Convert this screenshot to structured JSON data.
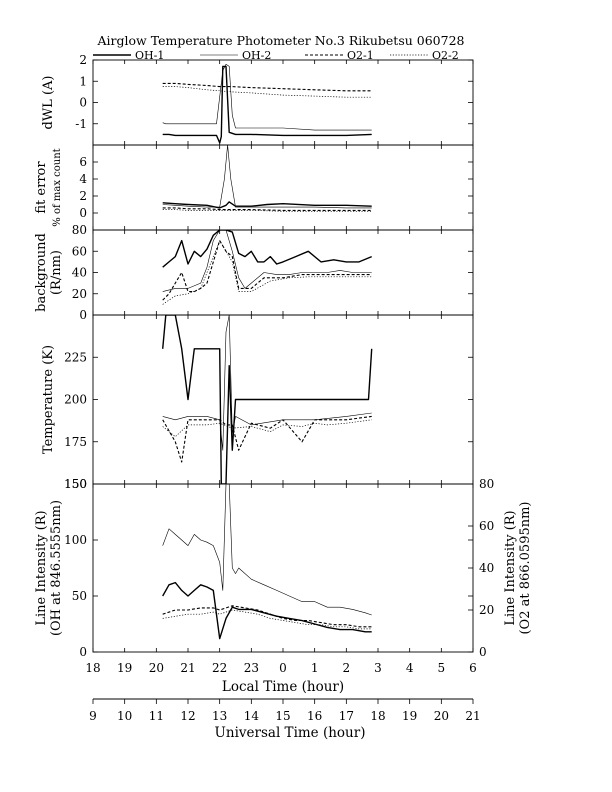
{
  "chart_data": {
    "type": "line",
    "title": "Airglow Temperature Photometer No.3  Rikubetsu  060728",
    "legend": {
      "placement": "top",
      "entries": [
        {
          "name": "OH-1",
          "style": "solid-thick"
        },
        {
          "name": "OH-2",
          "style": "solid-thin"
        },
        {
          "name": "O2-1",
          "style": "dashed-thick"
        },
        {
          "name": "O2-2",
          "style": "dotted-thin"
        }
      ]
    },
    "x_axes": {
      "local_time": {
        "label": "Local Time (hour)",
        "ticks": [
          "18",
          "19",
          "20",
          "21",
          "22",
          "23",
          "0",
          "1",
          "2",
          "3",
          "4",
          "5",
          "6"
        ]
      },
      "universal_time": {
        "label": "Universal Time (hour)",
        "ticks": [
          "9",
          "10",
          "11",
          "12",
          "13",
          "14",
          "15",
          "16",
          "17",
          "18",
          "19",
          "20",
          "21"
        ]
      },
      "range_ut": [
        9,
        21
      ]
    },
    "panels": [
      {
        "id": "dwl",
        "ylabel": [
          "dWL (A)"
        ],
        "ylim": [
          -2,
          2
        ],
        "yticks": [
          2,
          1,
          0,
          -1
        ],
        "series": [
          {
            "name": "OH-1",
            "x": [
              11.2,
              11.4,
              11.6,
              12.0,
              12.6,
              12.9,
              13.0,
              13.05,
              13.1,
              13.2,
              13.3,
              13.5,
              14.0,
              15.0,
              16.0,
              17.0,
              17.8
            ],
            "y": [
              -1.5,
              -1.5,
              -1.55,
              -1.55,
              -1.55,
              -1.55,
              -1.9,
              -1.6,
              1.7,
              1.7,
              -1.4,
              -1.5,
              -1.5,
              -1.55,
              -1.55,
              -1.55,
              -1.5
            ]
          },
          {
            "name": "OH-2",
            "x": [
              11.2,
              11.3,
              11.6,
              12.0,
              12.6,
              12.9,
              13.1,
              13.2,
              13.3,
              13.4,
              13.5,
              14.0,
              15.0,
              16.0,
              17.0,
              17.8
            ],
            "y": [
              -0.95,
              -1.0,
              -1.0,
              -1.0,
              -1.0,
              -1.0,
              1.5,
              1.8,
              1.7,
              -0.6,
              -1.2,
              -1.2,
              -1.2,
              -1.3,
              -1.3,
              -1.3
            ]
          },
          {
            "name": "O2-1",
            "x": [
              11.2,
              11.6,
              12.0,
              12.6,
              13.0,
              13.4,
              14.0,
              15.0,
              16.0,
              17.0,
              17.8
            ],
            "y": [
              0.9,
              0.9,
              0.85,
              0.8,
              0.75,
              0.75,
              0.7,
              0.65,
              0.6,
              0.55,
              0.55
            ]
          },
          {
            "name": "O2-2",
            "x": [
              11.2,
              11.6,
              12.0,
              12.6,
              13.0,
              13.4,
              14.0,
              15.0,
              16.0,
              17.0,
              17.8
            ],
            "y": [
              0.75,
              0.75,
              0.7,
              0.6,
              0.55,
              0.5,
              0.45,
              0.35,
              0.3,
              0.25,
              0.25
            ]
          }
        ]
      },
      {
        "id": "fit_error",
        "ylabel": [
          "fit error",
          "% of max count"
        ],
        "ylim": [
          -2,
          8
        ],
        "yticks": [
          6,
          4,
          2,
          0
        ],
        "series": [
          {
            "name": "OH-1",
            "x": [
              11.2,
              11.6,
              12.0,
              12.6,
              13.0,
              13.2,
              13.3,
              13.5,
              14.0,
              14.5,
              15.0,
              16.0,
              17.0,
              17.8
            ],
            "y": [
              1.2,
              1.1,
              1.0,
              0.9,
              0.6,
              0.9,
              1.3,
              0.8,
              0.8,
              1.0,
              1.1,
              0.9,
              0.9,
              0.8
            ]
          },
          {
            "name": "OH-2",
            "x": [
              11.2,
              11.6,
              12.0,
              12.6,
              13.0,
              13.15,
              13.25,
              13.35,
              13.5,
              14.0,
              15.0,
              16.0,
              17.0,
              17.8
            ],
            "y": [
              1.0,
              0.9,
              0.8,
              0.7,
              0.7,
              4.0,
              8.0,
              4.0,
              0.7,
              0.7,
              0.7,
              0.7,
              0.6,
              0.6
            ]
          },
          {
            "name": "O2-1",
            "x": [
              11.2,
              11.6,
              12.0,
              12.6,
              13.0,
              13.4,
              14.0,
              15.0,
              16.0,
              17.0,
              17.8
            ],
            "y": [
              0.6,
              0.6,
              0.5,
              0.5,
              0.4,
              0.4,
              0.4,
              0.3,
              0.3,
              0.3,
              0.3
            ]
          },
          {
            "name": "O2-2",
            "x": [
              11.2,
              11.6,
              12.0,
              12.6,
              13.0,
              13.4,
              14.0,
              15.0,
              16.0,
              17.0,
              17.8
            ],
            "y": [
              0.4,
              0.4,
              0.3,
              0.3,
              0.3,
              0.3,
              0.3,
              0.2,
              0.2,
              0.2,
              0.2
            ]
          }
        ]
      },
      {
        "id": "background",
        "ylabel": [
          "background",
          "(R/nm)"
        ],
        "ylim": [
          0,
          80
        ],
        "yticks": [
          80,
          60,
          40,
          20,
          0
        ],
        "series": [
          {
            "name": "OH-1",
            "x": [
              11.2,
              11.4,
              11.6,
              11.8,
              12.0,
              12.2,
              12.4,
              12.6,
              12.8,
              13.0,
              13.2,
              13.4,
              13.6,
              13.8,
              14.0,
              14.2,
              14.4,
              14.6,
              14.8,
              15.0,
              15.4,
              15.8,
              16.2,
              16.6,
              17.0,
              17.4,
              17.8
            ],
            "y": [
              45,
              50,
              55,
              70,
              48,
              60,
              55,
              62,
              75,
              80,
              80,
              78,
              58,
              55,
              60,
              50,
              50,
              55,
              48,
              50,
              55,
              60,
              50,
              52,
              50,
              50,
              55
            ]
          },
          {
            "name": "OH-2",
            "x": [
              11.2,
              11.6,
              12.0,
              12.4,
              12.6,
              12.8,
              13.0,
              13.2,
              13.4,
              13.6,
              13.8,
              14.0,
              14.4,
              14.8,
              15.2,
              15.6,
              16.0,
              16.4,
              16.8,
              17.2,
              17.8
            ],
            "y": [
              22,
              25,
              25,
              30,
              45,
              70,
              80,
              80,
              60,
              35,
              25,
              30,
              40,
              38,
              38,
              40,
              40,
              40,
              42,
              40,
              40
            ]
          },
          {
            "name": "O2-1",
            "x": [
              11.2,
              11.4,
              11.6,
              11.8,
              12.0,
              12.2,
              12.4,
              12.6,
              12.8,
              13.0,
              13.2,
              13.4,
              13.6,
              14.0,
              14.4,
              15.0,
              15.6,
              16.0,
              16.6,
              17.2,
              17.8
            ],
            "y": [
              14,
              20,
              30,
              40,
              22,
              22,
              25,
              30,
              50,
              70,
              60,
              55,
              25,
              25,
              35,
              35,
              38,
              38,
              38,
              38,
              38
            ]
          },
          {
            "name": "O2-2",
            "x": [
              11.2,
              11.6,
              12.0,
              12.4,
              12.8,
              13.0,
              13.2,
              13.4,
              13.6,
              14.0,
              14.6,
              15.2,
              15.8,
              16.4,
              17.0,
              17.8
            ],
            "y": [
              10,
              18,
              20,
              25,
              55,
              70,
              60,
              50,
              22,
              22,
              32,
              35,
              36,
              36,
              36,
              36
            ]
          }
        ]
      },
      {
        "id": "temperature",
        "ylabel": [
          "Temperature (K)"
        ],
        "ylim": [
          150,
          250
        ],
        "yticks": [
          225,
          200,
          175,
          150
        ],
        "series": [
          {
            "name": "OH-1",
            "x": [
              11.2,
              11.3,
              11.6,
              11.8,
              12.0,
              12.2,
              12.8,
              13.0,
              13.05,
              13.2,
              13.3,
              13.4,
              13.5,
              13.6,
              13.7,
              15.0,
              16.0,
              17.0,
              17.7,
              17.8
            ],
            "y": [
              230,
              250,
              250,
              230,
              200,
              230,
              230,
              230,
              150,
              150,
              220,
              170,
              200,
              200,
              200,
              200,
              200,
              200,
              200,
              230
            ]
          },
          {
            "name": "OH-2",
            "x": [
              11.2,
              11.6,
              12.0,
              12.6,
              13.0,
              13.1,
              13.2,
              13.3,
              13.4,
              13.5,
              14.0,
              15.0,
              16.0,
              17.0,
              17.8
            ],
            "y": [
              190,
              188,
              190,
              190,
              188,
              170,
              240,
              250,
              180,
              190,
              185,
              188,
              188,
              190,
              192
            ]
          },
          {
            "name": "O2-1",
            "x": [
              11.2,
              11.6,
              11.8,
              12.0,
              12.6,
              13.0,
              13.2,
              13.4,
              13.6,
              14.0,
              14.6,
              15.0,
              15.6,
              16.0,
              16.4,
              17.0,
              17.8
            ],
            "y": [
              188,
              175,
              163,
              188,
              188,
              188,
              185,
              185,
              170,
              186,
              183,
              188,
              175,
              188,
              188,
              188,
              190
            ]
          },
          {
            "name": "O2-2",
            "x": [
              11.2,
              11.6,
              12.0,
              12.6,
              13.0,
              13.4,
              14.0,
              14.6,
              15.0,
              15.6,
              16.0,
              16.4,
              17.0,
              17.8
            ],
            "y": [
              184,
              178,
              185,
              185,
              186,
              183,
              184,
              181,
              185,
              184,
              186,
              185,
              186,
              188
            ]
          }
        ]
      },
      {
        "id": "line_intensity",
        "ylabel": [
          "Line Intensity (R)",
          "(OH at 846.5555nm)"
        ],
        "ylabel_right": [
          "Line Intensity (R)",
          "(O2 at 866.0595nm)"
        ],
        "ylim": [
          0,
          150
        ],
        "yticks": [
          150,
          100,
          50,
          0
        ],
        "ylim_right": [
          0,
          80
        ],
        "yticks_right": [
          80,
          60,
          40,
          20,
          0
        ],
        "series": [
          {
            "name": "OH-1",
            "axis": "left",
            "x": [
              11.2,
              11.4,
              11.6,
              11.8,
              12.0,
              12.2,
              12.4,
              12.6,
              12.8,
              13.0,
              13.2,
              13.4,
              13.6,
              14.0,
              14.4,
              14.8,
              15.2,
              15.6,
              16.0,
              16.4,
              16.8,
              17.2,
              17.6,
              17.8
            ],
            "y": [
              50,
              60,
              62,
              55,
              50,
              55,
              60,
              58,
              55,
              12,
              30,
              40,
              38,
              38,
              35,
              32,
              30,
              28,
              25,
              22,
              20,
              20,
              18,
              18
            ]
          },
          {
            "name": "OH-2",
            "axis": "left",
            "x": [
              11.2,
              11.4,
              11.6,
              11.8,
              12.0,
              12.2,
              12.4,
              12.6,
              12.8,
              13.0,
              13.1,
              13.2,
              13.3,
              13.4,
              13.5,
              13.6,
              14.0,
              14.4,
              14.8,
              15.2,
              15.6,
              16.0,
              16.4,
              16.8,
              17.2,
              17.6,
              17.8
            ],
            "y": [
              95,
              110,
              105,
              100,
              95,
              105,
              100,
              98,
              95,
              80,
              55,
              150,
              150,
              75,
              70,
              75,
              65,
              60,
              55,
              50,
              45,
              45,
              40,
              40,
              38,
              35,
              33
            ]
          },
          {
            "name": "O2-1",
            "axis": "right",
            "x": [
              11.2,
              11.6,
              12.0,
              12.4,
              12.8,
              13.0,
              13.4,
              13.8,
              14.2,
              14.6,
              15.0,
              15.4,
              15.8,
              16.2,
              16.6,
              17.0,
              17.4,
              17.8
            ],
            "y": [
              18,
              20,
              20,
              21,
              21,
              20,
              22,
              21,
              20,
              18,
              16,
              15,
              15,
              14,
              13,
              13,
              12,
              12
            ]
          },
          {
            "name": "O2-2",
            "axis": "right",
            "x": [
              11.2,
              11.6,
              12.0,
              12.4,
              12.8,
              13.0,
              13.4,
              13.8,
              14.2,
              14.6,
              15.0,
              15.4,
              15.8,
              16.2,
              16.6,
              17.0,
              17.4,
              17.8
            ],
            "y": [
              16,
              17,
              18,
              18,
              19,
              18,
              20,
              19,
              18,
              16,
              15,
              14,
              13,
              13,
              12,
              12,
              11,
              11
            ]
          }
        ]
      }
    ]
  }
}
